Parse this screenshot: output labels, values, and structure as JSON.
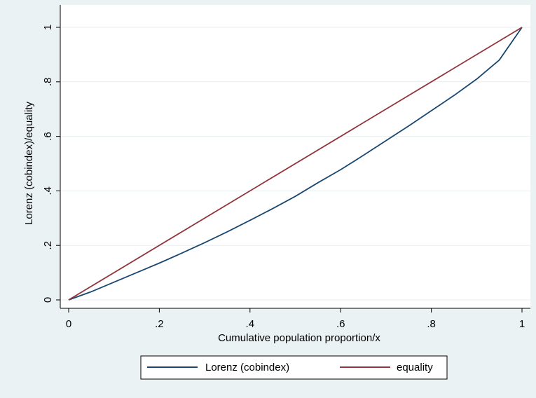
{
  "chart_data": {
    "type": "line",
    "title": "",
    "xlabel": "Cumulative population proportion/x",
    "ylabel": "Lorenz (cobindex)/equality",
    "xlim": [
      0,
      1
    ],
    "ylim": [
      0,
      1
    ],
    "x_ticks": [
      {
        "value": 0,
        "label": "0"
      },
      {
        "value": 0.2,
        "label": ".2"
      },
      {
        "value": 0.4,
        "label": ".4"
      },
      {
        "value": 0.6,
        "label": ".6"
      },
      {
        "value": 0.8,
        "label": ".8"
      },
      {
        "value": 1,
        "label": "1"
      }
    ],
    "y_ticks": [
      {
        "value": 0,
        "label": "0"
      },
      {
        "value": 0.2,
        "label": ".2"
      },
      {
        "value": 0.4,
        "label": ".4"
      },
      {
        "value": 0.6,
        "label": ".6"
      },
      {
        "value": 0.8,
        "label": ".8"
      },
      {
        "value": 1,
        "label": "1"
      }
    ],
    "grid": "horizontal",
    "legend_position": "bottom",
    "series": [
      {
        "name": "Lorenz (cobindex)",
        "color": "#1a476f",
        "x": [
          0,
          0.05,
          0.1,
          0.15,
          0.2,
          0.25,
          0.3,
          0.35,
          0.4,
          0.45,
          0.5,
          0.55,
          0.6,
          0.65,
          0.7,
          0.75,
          0.8,
          0.85,
          0.9,
          0.95,
          1
        ],
        "y": [
          0,
          0.03,
          0.065,
          0.1,
          0.135,
          0.172,
          0.21,
          0.25,
          0.292,
          0.335,
          0.38,
          0.43,
          0.478,
          0.53,
          0.584,
          0.638,
          0.694,
          0.75,
          0.81,
          0.88,
          1
        ]
      },
      {
        "name": "equality",
        "color": "#90353b",
        "x": [
          0,
          1
        ],
        "y": [
          0,
          1
        ]
      }
    ]
  }
}
